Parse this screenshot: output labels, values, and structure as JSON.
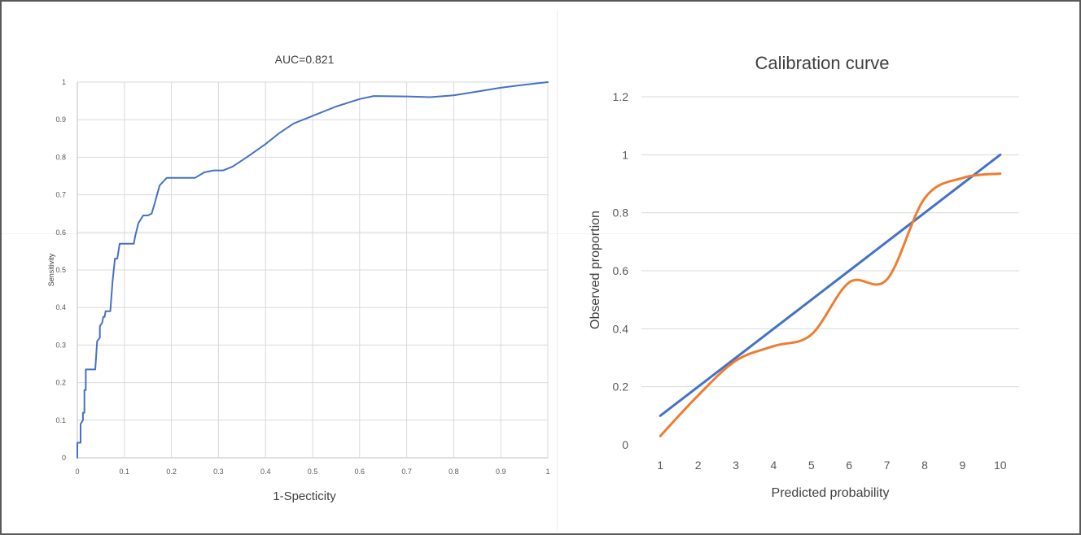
{
  "chart_data": [
    {
      "type": "line",
      "title": "AUC=0.821",
      "xlabel": "1-Specticity",
      "ylabel": "Sensitivity",
      "xlim": [
        0,
        1
      ],
      "ylim": [
        0,
        1
      ],
      "x_ticks": [
        "0",
        "0.1",
        "0.2",
        "0.3",
        "0.4",
        "0.5",
        "0.6",
        "0.7",
        "0.8",
        "0.9",
        "1"
      ],
      "y_ticks": [
        "0",
        "0.1",
        "0.2",
        "0.3",
        "0.4",
        "0.5",
        "0.6",
        "0.7",
        "0.8",
        "0.9",
        "1"
      ],
      "grid": "vertical and horizontal",
      "legend": "none",
      "series": [
        {
          "color": "#4472c4",
          "x": [
            0,
            0,
            0.007,
            0.007,
            0.012,
            0.012,
            0.015,
            0.015,
            0.018,
            0.018,
            0.022,
            0.022,
            0.038,
            0.04,
            0.042,
            0.048,
            0.048,
            0.053,
            0.055,
            0.058,
            0.06,
            0.062,
            0.07,
            0.075,
            0.08,
            0.085,
            0.09,
            0.092,
            0.098,
            0.1,
            0.12,
            0.123,
            0.13,
            0.14,
            0.15,
            0.158,
            0.165,
            0.175,
            0.19,
            0.2,
            0.22,
            0.25,
            0.27,
            0.29,
            0.31,
            0.33,
            0.36,
            0.4,
            0.43,
            0.46,
            0.5,
            0.55,
            0.6,
            0.63,
            0.7,
            0.75,
            0.8,
            0.85,
            0.9,
            0.95,
            1
          ],
          "y": [
            0,
            0.04,
            0.04,
            0.09,
            0.1,
            0.12,
            0.12,
            0.18,
            0.18,
            0.235,
            0.235,
            0.235,
            0.235,
            0.27,
            0.31,
            0.32,
            0.35,
            0.36,
            0.375,
            0.375,
            0.39,
            0.39,
            0.39,
            0.47,
            0.53,
            0.53,
            0.57,
            0.57,
            0.57,
            0.57,
            0.57,
            0.59,
            0.625,
            0.645,
            0.645,
            0.65,
            0.68,
            0.725,
            0.745,
            0.745,
            0.745,
            0.745,
            0.76,
            0.765,
            0.765,
            0.775,
            0.8,
            0.835,
            0.865,
            0.89,
            0.91,
            0.935,
            0.955,
            0.963,
            0.962,
            0.96,
            0.965,
            0.975,
            0.985,
            0.993,
            1
          ]
        }
      ]
    },
    {
      "type": "line",
      "title": "Calibration curve",
      "xlabel": "Predicted probability",
      "ylabel": "Observed proportion",
      "ylim": [
        0,
        1.2
      ],
      "x": [
        1,
        2,
        3,
        4,
        5,
        6,
        7,
        8,
        9,
        10
      ],
      "y_ticks": [
        "0",
        "0.2",
        "0.4",
        "0.6",
        "0.8",
        "1",
        "1.2"
      ],
      "grid": "horizontal",
      "legend": "none",
      "series": [
        {
          "color": "#4472c4",
          "values": [
            0.1,
            0.2,
            0.3,
            0.4,
            0.5,
            0.6,
            0.7,
            0.8,
            0.9,
            1.0
          ]
        },
        {
          "color": "#ed7d31",
          "values": [
            0.03,
            0.17,
            0.29,
            0.34,
            0.38,
            0.56,
            0.57,
            0.85,
            0.92,
            0.935
          ]
        }
      ]
    }
  ]
}
